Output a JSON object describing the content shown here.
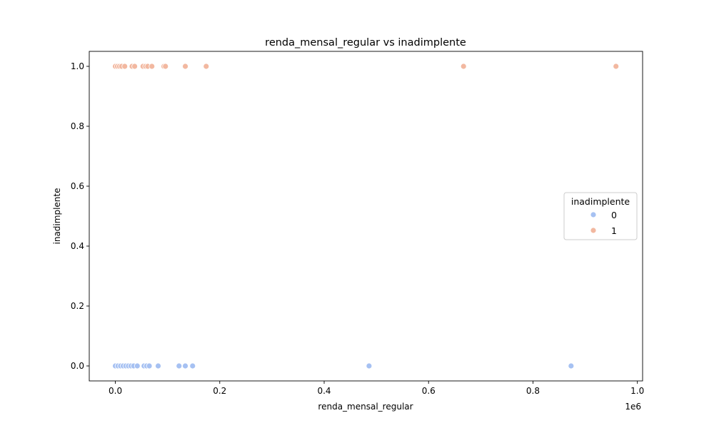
{
  "chart_data": {
    "type": "scatter",
    "title": "renda_mensal_regular vs inadimplente",
    "xlabel": "renda_mensal_regular",
    "ylabel": "inadimplente",
    "x_offset_label": "1e6",
    "xlim": [
      -0.05,
      1.01
    ],
    "ylim": [
      -0.05,
      1.05
    ],
    "x_ticks": [
      {
        "value": 0.0,
        "label": "0.0"
      },
      {
        "value": 0.2,
        "label": "0.2"
      },
      {
        "value": 0.4,
        "label": "0.4"
      },
      {
        "value": 0.6,
        "label": "0.6"
      },
      {
        "value": 0.8,
        "label": "0.8"
      },
      {
        "value": 1.0,
        "label": "1.0"
      }
    ],
    "y_ticks": [
      {
        "value": 0.0,
        "label": "0.0"
      },
      {
        "value": 0.2,
        "label": "0.2"
      },
      {
        "value": 0.4,
        "label": "0.4"
      },
      {
        "value": 0.6,
        "label": "0.6"
      },
      {
        "value": 0.8,
        "label": "0.8"
      },
      {
        "value": 1.0,
        "label": "1.0"
      }
    ],
    "grid": false,
    "legend": {
      "title": "inadimplente",
      "placement": "center-right"
    },
    "series": [
      {
        "name": "0",
        "color": "#a6c1f2",
        "points": [
          {
            "x": 0.0,
            "y": 0
          },
          {
            "x": 0.005,
            "y": 0
          },
          {
            "x": 0.01,
            "y": 0
          },
          {
            "x": 0.015,
            "y": 0
          },
          {
            "x": 0.02,
            "y": 0
          },
          {
            "x": 0.025,
            "y": 0
          },
          {
            "x": 0.03,
            "y": 0
          },
          {
            "x": 0.035,
            "y": 0
          },
          {
            "x": 0.042,
            "y": 0
          },
          {
            "x": 0.055,
            "y": 0
          },
          {
            "x": 0.06,
            "y": 0
          },
          {
            "x": 0.065,
            "y": 0
          },
          {
            "x": 0.082,
            "y": 0
          },
          {
            "x": 0.122,
            "y": 0
          },
          {
            "x": 0.134,
            "y": 0
          },
          {
            "x": 0.148,
            "y": 0
          },
          {
            "x": 0.486,
            "y": 0
          },
          {
            "x": 0.873,
            "y": 0
          }
        ]
      },
      {
        "name": "1",
        "color": "#f2b8a0",
        "points": [
          {
            "x": 0.0,
            "y": 1
          },
          {
            "x": 0.004,
            "y": 1
          },
          {
            "x": 0.008,
            "y": 1
          },
          {
            "x": 0.012,
            "y": 1
          },
          {
            "x": 0.018,
            "y": 1
          },
          {
            "x": 0.032,
            "y": 1
          },
          {
            "x": 0.037,
            "y": 1
          },
          {
            "x": 0.053,
            "y": 1
          },
          {
            "x": 0.058,
            "y": 1
          },
          {
            "x": 0.062,
            "y": 1
          },
          {
            "x": 0.07,
            "y": 1
          },
          {
            "x": 0.093,
            "y": 1
          },
          {
            "x": 0.096,
            "y": 1
          },
          {
            "x": 0.134,
            "y": 1
          },
          {
            "x": 0.174,
            "y": 1
          },
          {
            "x": 0.667,
            "y": 1
          },
          {
            "x": 0.959,
            "y": 1
          }
        ]
      }
    ]
  }
}
